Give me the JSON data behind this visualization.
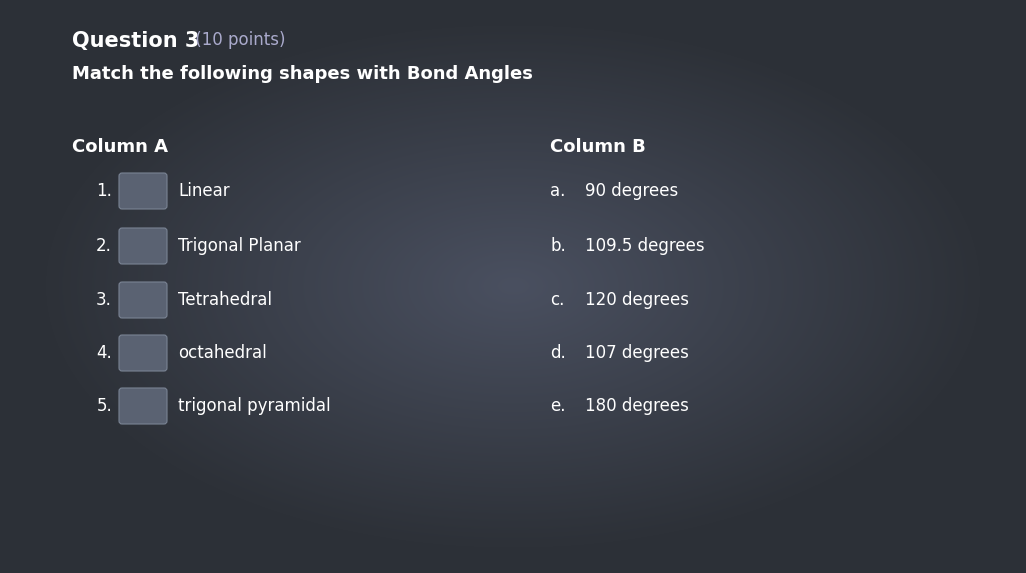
{
  "background_color": "#2d3138",
  "background_center": "#4a5060",
  "title": "Question 3",
  "title_suffix": " (10 points)",
  "subtitle": "Match the following shapes with Bond Angles",
  "col_a_header": "Column A",
  "col_b_header": "Column B",
  "col_a_items": [
    {
      "num": "1.",
      "label": "Linear"
    },
    {
      "num": "2.",
      "label": "Trigonal Planar"
    },
    {
      "num": "3.",
      "label": "Tetrahedral"
    },
    {
      "num": "4.",
      "label": "octahedral"
    },
    {
      "num": "5.",
      "label": "trigonal pyramidal"
    }
  ],
  "col_b_items": [
    {
      "letter": "a.",
      "label": "90 degrees"
    },
    {
      "letter": "b.",
      "label": "109.5 degrees"
    },
    {
      "letter": "c.",
      "label": "120 degrees"
    },
    {
      "letter": "d.",
      "label": "107 degrees"
    },
    {
      "letter": "e.",
      "label": "180 degrees"
    }
  ],
  "text_color": "#ffffff",
  "box_color": "#5a6272",
  "box_edge_color": "#7a8494",
  "title_fontsize": 15,
  "subtitle_fontsize": 13,
  "header_fontsize": 13,
  "item_fontsize": 12,
  "fig_width": 10.26,
  "fig_height": 5.73,
  "dpi": 100
}
